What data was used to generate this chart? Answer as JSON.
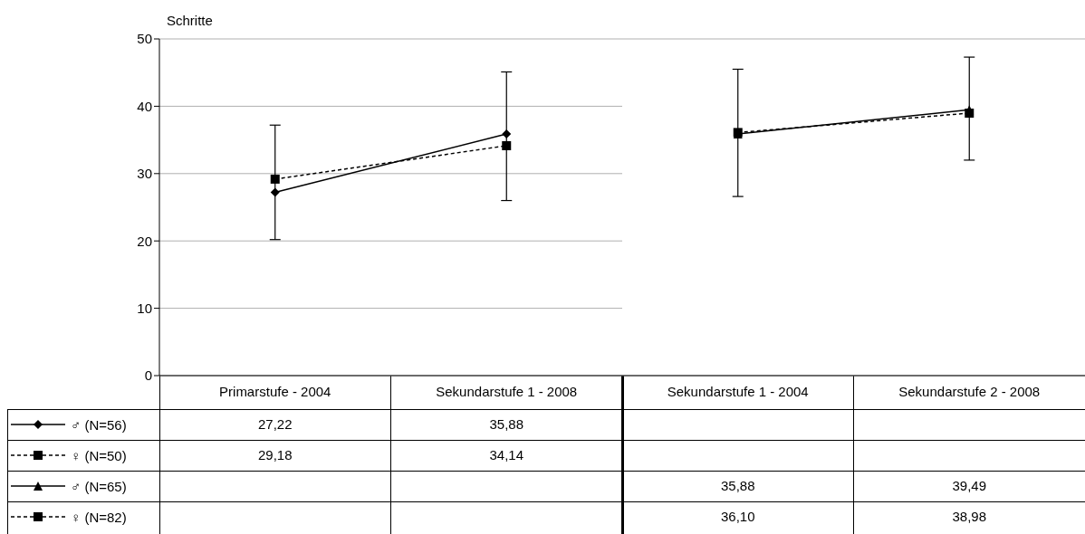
{
  "chart_data": [
    {
      "type": "line",
      "ylabel": "Schritte",
      "categories": [
        "Primarstufe - 2004",
        "Sekundarstufe 1 - 2008"
      ],
      "ylim": [
        0,
        50
      ],
      "yticks": [
        0,
        10,
        20,
        30,
        40,
        50
      ],
      "grid": "y",
      "legend": "bottom left",
      "series": [
        {
          "name": "♂ (N=56)",
          "color": "#000000",
          "marker": "diamond",
          "line_style": "solid",
          "values": [
            27.22,
            35.88
          ],
          "value_labels": [
            "27,22",
            "35,88"
          ],
          "errors": [
            [
              20.2,
              37.2
            ],
            [
              26.0,
              45.1
            ]
          ]
        },
        {
          "name": "♀ (N=50)",
          "color": "#000000",
          "marker": "square",
          "line_style": "dashed",
          "values": [
            29.18,
            34.14
          ],
          "value_labels": [
            "29,18",
            "34,14"
          ]
        }
      ]
    },
    {
      "type": "line",
      "categories": [
        "Sekundarstufe 1 - 2004",
        "Sekundarstufe 2 - 2008"
      ],
      "ylim": [
        0,
        50
      ],
      "yticks": [
        0,
        10,
        20,
        30,
        40,
        50
      ],
      "grid": "y",
      "legend": "bottom left",
      "tick_labels": "x",
      "series": [
        {
          "name": "♂ (N=65)",
          "color": "#000000",
          "marker": "triangle",
          "line_style": "solid",
          "values": [
            35.88,
            39.49
          ],
          "value_labels": [
            "35,88",
            "39,49"
          ],
          "errors": [
            [
              26.6,
              45.5
            ],
            [
              32.0,
              47.3
            ]
          ]
        },
        {
          "name": "♀ (N=82)",
          "color": "#000000",
          "marker": "square",
          "line_style": "dashed",
          "values": [
            36.1,
            38.98
          ],
          "value_labels": [
            "36,10",
            "38,98"
          ]
        }
      ]
    }
  ]
}
